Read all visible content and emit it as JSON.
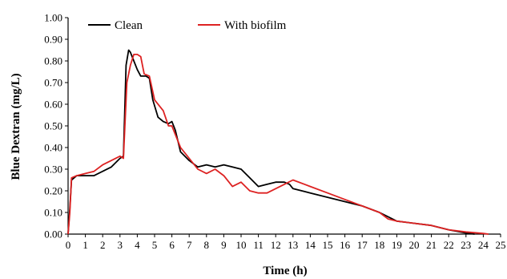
{
  "chart_data": {
    "type": "line",
    "title": "",
    "xlabel": "Time (h)",
    "ylabel": "Blue Dextran (mg/L)",
    "xlim": [
      0,
      25
    ],
    "ylim": [
      0,
      1.0
    ],
    "x_ticks": [
      "0",
      "1",
      "2",
      "3",
      "4",
      "5",
      "6",
      "7",
      "8",
      "9",
      "10",
      "11",
      "12",
      "13",
      "14",
      "15",
      "16",
      "17",
      "18",
      "19",
      "20",
      "21",
      "22",
      "23",
      "24",
      "25"
    ],
    "y_ticks": [
      "0.00",
      "0.10",
      "0.20",
      "0.30",
      "0.40",
      "0.50",
      "0.60",
      "0.70",
      "0.80",
      "0.90",
      "1.00"
    ],
    "grid": false,
    "legend_position": "top",
    "series": [
      {
        "name": "Clean",
        "color": "#000000",
        "points": [
          [
            0,
            0
          ],
          [
            0.1,
            0.12
          ],
          [
            0.2,
            0.25
          ],
          [
            0.5,
            0.27
          ],
          [
            1,
            0.27
          ],
          [
            1.5,
            0.27
          ],
          [
            2,
            0.29
          ],
          [
            2.5,
            0.31
          ],
          [
            3,
            0.35
          ],
          [
            3.2,
            0.36
          ],
          [
            3.35,
            0.78
          ],
          [
            3.5,
            0.85
          ],
          [
            3.6,
            0.84
          ],
          [
            3.8,
            0.8
          ],
          [
            4,
            0.76
          ],
          [
            4.2,
            0.73
          ],
          [
            4.5,
            0.73
          ],
          [
            4.7,
            0.72
          ],
          [
            4.9,
            0.62
          ],
          [
            5.2,
            0.54
          ],
          [
            5.5,
            0.52
          ],
          [
            5.8,
            0.51
          ],
          [
            6,
            0.52
          ],
          [
            6.2,
            0.48
          ],
          [
            6.5,
            0.38
          ],
          [
            7,
            0.34
          ],
          [
            7.5,
            0.31
          ],
          [
            8,
            0.32
          ],
          [
            8.5,
            0.31
          ],
          [
            9,
            0.32
          ],
          [
            9.5,
            0.31
          ],
          [
            10,
            0.3
          ],
          [
            10.5,
            0.26
          ],
          [
            11,
            0.22
          ],
          [
            11.5,
            0.23
          ],
          [
            12,
            0.24
          ],
          [
            12.5,
            0.24
          ],
          [
            12.8,
            0.23
          ],
          [
            13,
            0.21
          ],
          [
            14,
            0.19
          ],
          [
            15,
            0.17
          ],
          [
            16,
            0.15
          ],
          [
            17,
            0.13
          ],
          [
            18,
            0.1
          ],
          [
            19,
            0.06
          ],
          [
            20,
            0.05
          ],
          [
            21,
            0.04
          ],
          [
            22,
            0.02
          ],
          [
            23,
            0.005
          ],
          [
            23.5,
            0
          ]
        ]
      },
      {
        "name": "With biofilm",
        "color": "#dd2222",
        "points": [
          [
            0,
            0
          ],
          [
            0.1,
            0.1
          ],
          [
            0.2,
            0.26
          ],
          [
            0.5,
            0.27
          ],
          [
            1,
            0.28
          ],
          [
            1.5,
            0.29
          ],
          [
            2,
            0.32
          ],
          [
            2.5,
            0.34
          ],
          [
            3,
            0.36
          ],
          [
            3.2,
            0.35
          ],
          [
            3.4,
            0.7
          ],
          [
            3.6,
            0.78
          ],
          [
            3.8,
            0.83
          ],
          [
            4,
            0.83
          ],
          [
            4.2,
            0.82
          ],
          [
            4.4,
            0.74
          ],
          [
            4.7,
            0.73
          ],
          [
            5,
            0.62
          ],
          [
            5.5,
            0.57
          ],
          [
            5.8,
            0.5
          ],
          [
            6,
            0.5
          ],
          [
            6.2,
            0.46
          ],
          [
            6.5,
            0.4
          ],
          [
            7,
            0.35
          ],
          [
            7.5,
            0.3
          ],
          [
            8,
            0.28
          ],
          [
            8.5,
            0.3
          ],
          [
            9,
            0.27
          ],
          [
            9.5,
            0.22
          ],
          [
            10,
            0.24
          ],
          [
            10.5,
            0.2
          ],
          [
            11,
            0.19
          ],
          [
            11.5,
            0.19
          ],
          [
            12,
            0.21
          ],
          [
            12.5,
            0.23
          ],
          [
            13,
            0.25
          ],
          [
            14,
            0.22
          ],
          [
            15,
            0.19
          ],
          [
            16,
            0.16
          ],
          [
            17,
            0.13
          ],
          [
            18,
            0.1
          ],
          [
            18.5,
            0.07
          ],
          [
            19,
            0.06
          ],
          [
            20,
            0.05
          ],
          [
            21,
            0.04
          ],
          [
            22,
            0.02
          ],
          [
            23,
            0.01
          ],
          [
            24,
            0.003
          ],
          [
            24.3,
            0
          ]
        ]
      }
    ]
  }
}
